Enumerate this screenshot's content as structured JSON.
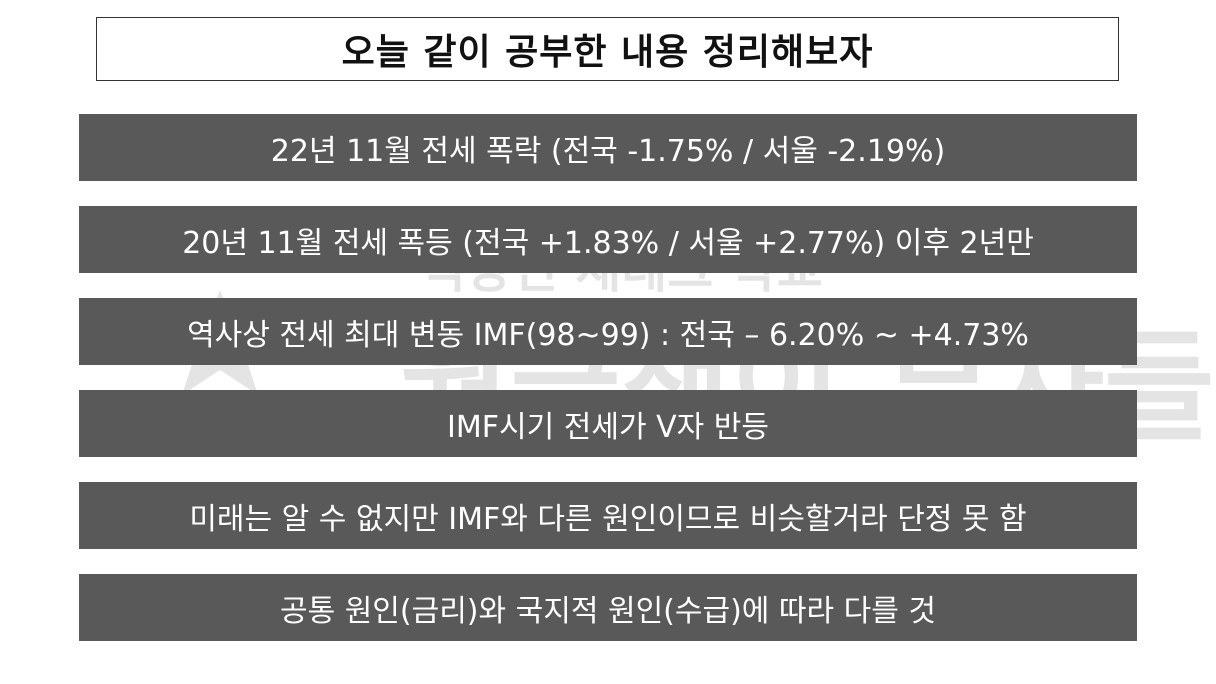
{
  "title": "오늘 같이 공부한 내용 정리해보자",
  "watermark": {
    "line1": "직장인 재테크 학교",
    "line2": "월급쟁이 부자들"
  },
  "rows": [
    "22년 11월 전세 폭락 (전국 -1.75% / 서울 -2.19%)",
    "20년 11월 전세 폭등 (전국 +1.83% / 서울 +2.77%) 이후 2년만",
    "역사상 전세 최대 변동 IMF(98~99) : 전국 – 6.20% ~ +4.73%",
    "IMF시기 전세가 V자 반등",
    "미래는 알 수 없지만 IMF와 다른 원인이므로 비슷할거라 단정 못 함",
    "공통 원인(금리)와 국지적 원인(수급)에 따라 다를 것"
  ],
  "colors": {
    "bar_background": "#595959",
    "bar_text": "#ffffff",
    "title_border": "#333333"
  }
}
